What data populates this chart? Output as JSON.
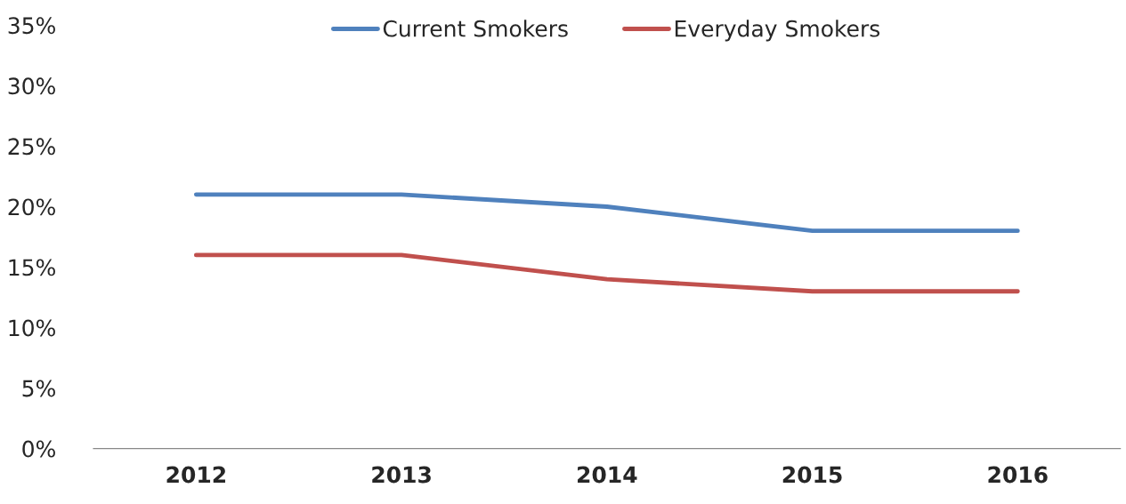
{
  "chart_data": {
    "type": "line",
    "categories": [
      "2012",
      "2013",
      "2014",
      "2015",
      "2016"
    ],
    "series": [
      {
        "name": "Current Smokers",
        "color": "#4f81bd",
        "values": [
          21,
          21,
          20,
          18,
          18
        ]
      },
      {
        "name": "Everyday Smokers",
        "color": "#c0504d",
        "values": [
          16,
          16,
          14,
          13,
          13
        ]
      }
    ],
    "ylim": [
      0,
      35
    ],
    "yticks": [
      {
        "value": 0,
        "label": "0%"
      },
      {
        "value": 5,
        "label": "5%"
      },
      {
        "value": 10,
        "label": "10%"
      },
      {
        "value": 15,
        "label": "15%"
      },
      {
        "value": 20,
        "label": "20%"
      },
      {
        "value": 25,
        "label": "25%"
      },
      {
        "value": 30,
        "label": "30%"
      },
      {
        "value": 35,
        "label": "35%"
      }
    ],
    "legend": "top",
    "grid": false,
    "marker": "none",
    "line_style": "solid"
  }
}
